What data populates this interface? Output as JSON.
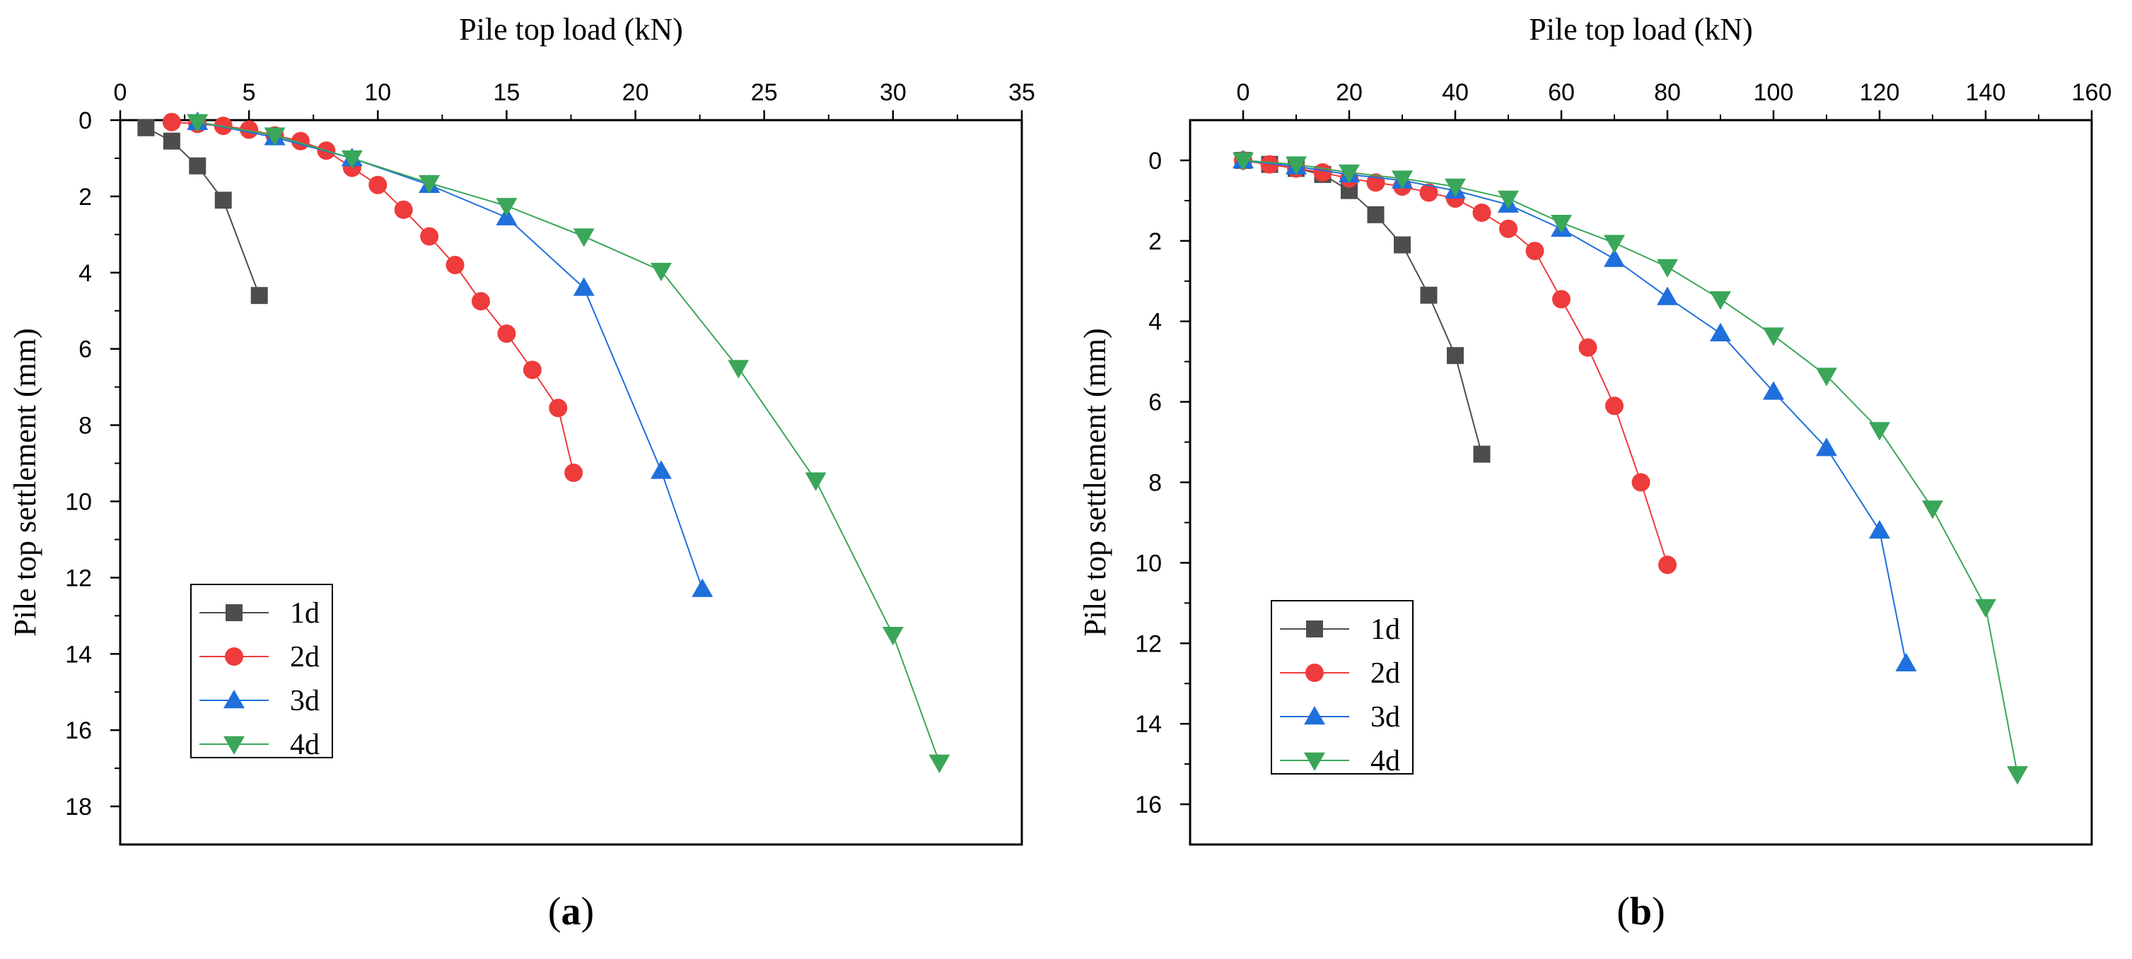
{
  "chart_data": [
    {
      "type": "line",
      "panel_label": "(a)",
      "panel_letter": "a",
      "xlabel": "Pile top load (kN)",
      "ylabel": "Pile top settlement (mm)",
      "xlim": [
        0,
        35
      ],
      "ylim": [
        0,
        19
      ],
      "y_inverted": true,
      "x_axis_position": "top",
      "x_ticks": [
        0,
        5,
        10,
        15,
        20,
        25,
        30,
        35
      ],
      "y_ticks": [
        0,
        2,
        4,
        6,
        8,
        10,
        12,
        14,
        16,
        18
      ],
      "legend_position": "bottom-left",
      "series": [
        {
          "name": "1d",
          "color": "#4d4d4d",
          "marker": "square",
          "x": [
            1,
            2,
            3,
            4,
            5.4
          ],
          "y": [
            0.2,
            0.55,
            1.2,
            2.1,
            4.6
          ]
        },
        {
          "name": "2d",
          "color": "#ee3b3b",
          "marker": "circle",
          "x": [
            2,
            3,
            4,
            5,
            6,
            7,
            8,
            9,
            10,
            11,
            12,
            13,
            14,
            15,
            16,
            17,
            17.6
          ],
          "y": [
            0.05,
            0.1,
            0.15,
            0.25,
            0.4,
            0.55,
            0.8,
            1.25,
            1.7,
            2.35,
            3.05,
            3.8,
            4.75,
            5.6,
            6.55,
            7.55,
            9.25
          ]
        },
        {
          "name": "3d",
          "color": "#1f6fdc",
          "marker": "triangle-up",
          "x": [
            3,
            6,
            9,
            12,
            15,
            18,
            21,
            22.6
          ],
          "y": [
            0.05,
            0.45,
            1.0,
            1.7,
            2.55,
            4.4,
            9.2,
            12.3
          ]
        },
        {
          "name": "4d",
          "color": "#3aa659",
          "marker": "triangle-down",
          "x": [
            3,
            6,
            9,
            12,
            15,
            18,
            21,
            24,
            27,
            30,
            31.8
          ],
          "y": [
            0.05,
            0.4,
            1.0,
            1.65,
            2.25,
            3.05,
            3.95,
            6.5,
            9.45,
            13.5,
            16.85
          ]
        }
      ]
    },
    {
      "type": "line",
      "panel_label": "(b)",
      "panel_letter": "b",
      "xlabel": "Pile top load (kN)",
      "ylabel": "Pile top settlement (mm)",
      "xlim": [
        -10,
        160
      ],
      "ylim": [
        -1,
        17
      ],
      "y_inverted": true,
      "x_axis_position": "top",
      "x_ticks": [
        0,
        20,
        40,
        60,
        80,
        100,
        120,
        140,
        160
      ],
      "y_ticks": [
        0,
        2,
        4,
        6,
        8,
        10,
        12,
        14,
        16
      ],
      "legend_position": "bottom-left",
      "series": [
        {
          "name": "1d",
          "color": "#4d4d4d",
          "marker": "square",
          "x": [
            0,
            5,
            10,
            15,
            20,
            25,
            30,
            35,
            40,
            45
          ],
          "y": [
            0,
            0.1,
            0.2,
            0.35,
            0.75,
            1.35,
            2.1,
            3.35,
            4.85,
            7.3
          ]
        },
        {
          "name": "2d",
          "color": "#ee3b3b",
          "marker": "circle",
          "x": [
            0,
            5,
            10,
            15,
            20,
            25,
            30,
            35,
            40,
            45,
            50,
            55,
            60,
            65,
            70,
            75,
            80
          ],
          "y": [
            0,
            0.1,
            0.2,
            0.3,
            0.45,
            0.55,
            0.65,
            0.8,
            0.95,
            1.3,
            1.7,
            2.25,
            3.45,
            4.65,
            6.1,
            8.0,
            10.05
          ]
        },
        {
          "name": "3d",
          "color": "#1f6fdc",
          "marker": "triangle-up",
          "x": [
            0,
            10,
            20,
            30,
            40,
            50,
            60,
            70,
            80,
            90,
            100,
            110,
            120,
            125
          ],
          "y": [
            0,
            0.15,
            0.35,
            0.5,
            0.75,
            1.1,
            1.7,
            2.45,
            3.4,
            4.3,
            5.75,
            7.15,
            9.2,
            12.5
          ]
        },
        {
          "name": "4d",
          "color": "#3aa659",
          "marker": "triangle-down",
          "x": [
            0,
            10,
            20,
            30,
            40,
            50,
            60,
            70,
            80,
            90,
            100,
            110,
            120,
            130,
            140,
            146
          ],
          "y": [
            0,
            0.1,
            0.3,
            0.45,
            0.65,
            0.95,
            1.55,
            2.05,
            2.65,
            3.45,
            4.35,
            5.35,
            6.7,
            8.65,
            11.1,
            15.25
          ]
        }
      ]
    }
  ]
}
